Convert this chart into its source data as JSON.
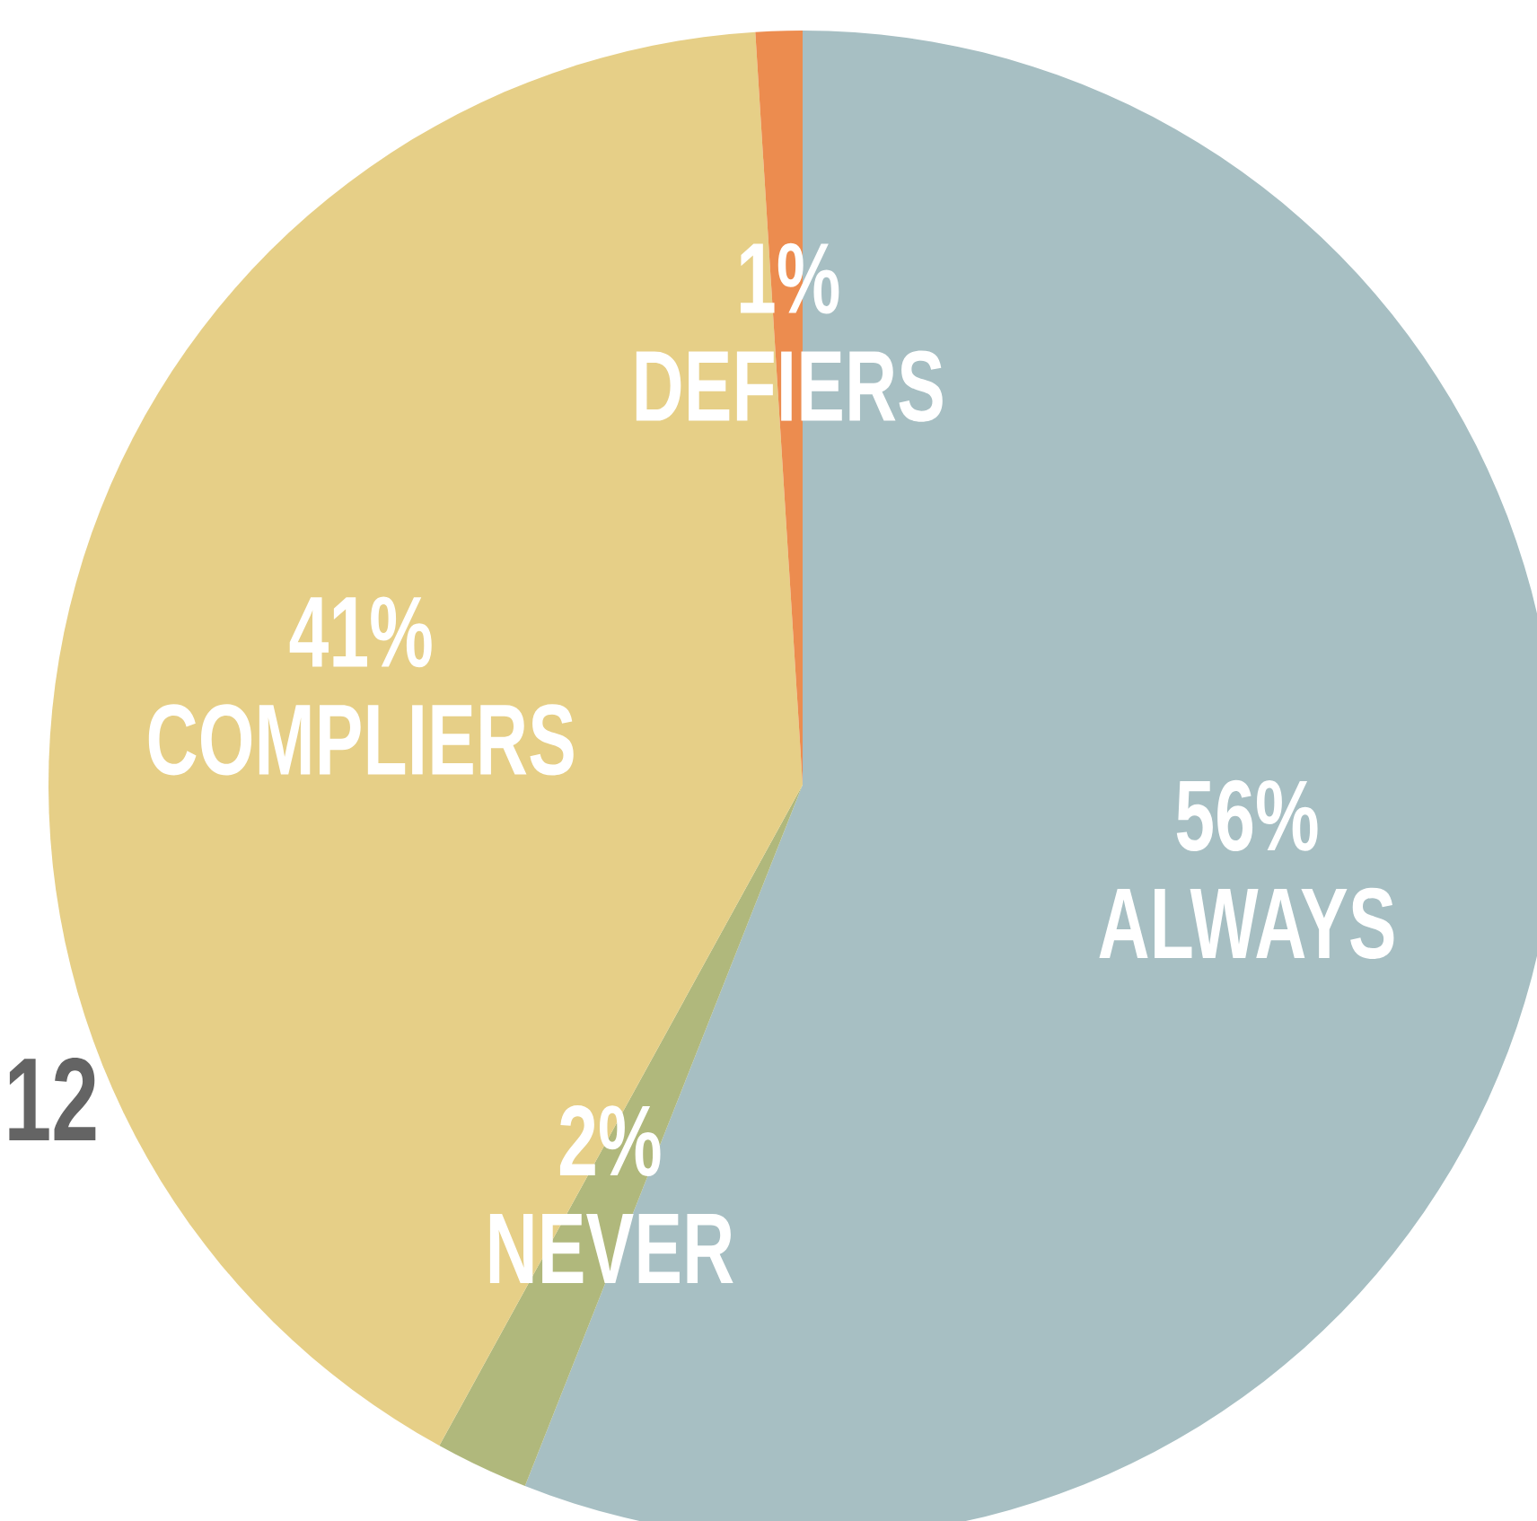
{
  "chart_data": {
    "type": "pie",
    "categories": [
      "ALWAYS",
      "NEVER",
      "COMPLIERS",
      "DEFIERS"
    ],
    "values": [
      56,
      2,
      41,
      1
    ],
    "colors": [
      "#a7bfc3",
      "#b0b87c",
      "#e6cf87",
      "#ec8c4f"
    ],
    "value_labels": [
      "56%",
      "2%",
      "41%",
      "1%"
    ],
    "annotations": [
      "12"
    ]
  }
}
